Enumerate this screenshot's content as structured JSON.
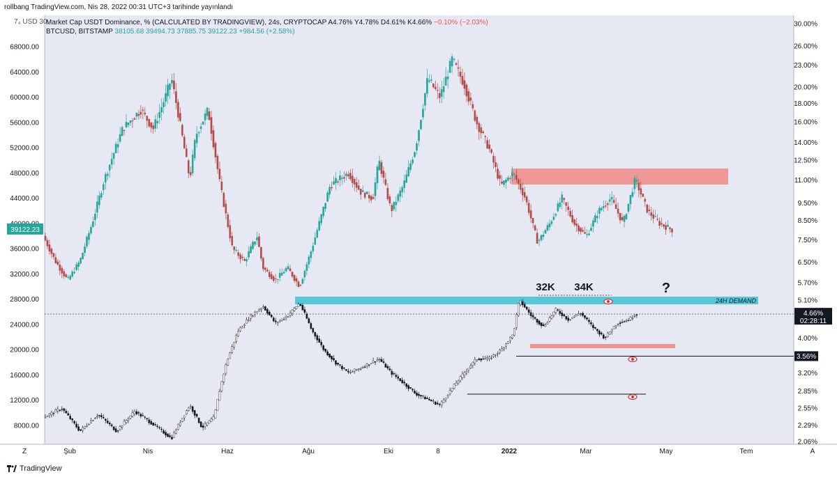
{
  "header": {
    "published": "rollbang TradingView.com, Nis 28, 2022 00:31 UTC+3 tarihinde yayınlandı",
    "corner_label": "7₄ USD 30"
  },
  "legend": {
    "series1_name": "Market Cap USDT Dominance, % (CALCULATED BY TRADINGVIEW), 24s, CRYPTOCAP",
    "series1_values": "A4.76%  Y4.78%  D4.61%  K4.66%",
    "series1_change": "−0.10% (−2.03%)",
    "series2_name": "BTCUSD, BITSTAMP",
    "series2_values": "38105.68  39494.73  37885.75  39122.23",
    "series2_change": "+984.56 (+2.58%)"
  },
  "footer": {
    "brand": "TradingView"
  },
  "colors": {
    "bull": "#26a69a",
    "bear": "#b34b46",
    "pane_bg": "#e6e8f4",
    "demand": "#56c8d8",
    "supply": "#ef8a86"
  },
  "chart_data": {
    "type": "candlestick",
    "left_axis": {
      "series": "BTCUSD",
      "ticks": [
        "68000.00",
        "64000.00",
        "60000.00",
        "56000.00",
        "52000.00",
        "48000.00",
        "44000.00",
        "40000.00",
        "36000.00",
        "32000.00",
        "28000.00",
        "24000.00",
        "20000.00",
        "16000.00",
        "12000.00",
        "8000.00"
      ],
      "tick_values": [
        68000,
        64000,
        60000,
        56000,
        52000,
        48000,
        44000,
        40000,
        36000,
        32000,
        28000,
        24000,
        20000,
        16000,
        12000,
        8000
      ],
      "last_price_label": "39122.23",
      "last_price": 39122.23
    },
    "right_axis": {
      "series": "USDT Dominance (log)",
      "ticks": [
        "30.00%",
        "26.00%",
        "23.00%",
        "20.00%",
        "18.00%",
        "16.00%",
        "14.00%",
        "12.50%",
        "11.00%",
        "9.50%",
        "8.50%",
        "7.50%",
        "6.50%",
        "5.70%",
        "5.10%",
        "4.00%",
        "3.20%",
        "2.85%",
        "2.55%",
        "2.29%",
        "2.06%"
      ],
      "tick_values": [
        30,
        26,
        23,
        20,
        18,
        16,
        14,
        12.5,
        11,
        9.5,
        8.5,
        7.5,
        6.5,
        5.7,
        5.1,
        4.0,
        3.2,
        2.85,
        2.55,
        2.29,
        2.06
      ],
      "current_label": "4.66%",
      "current_value": 4.66,
      "countdown": "02:28:11",
      "marked_level_label": "3.56%",
      "marked_level": 3.56
    },
    "x_ticks": [
      "Z",
      "Şub",
      "Nis",
      "Haz",
      "Ağu",
      "Eki",
      "8",
      "2022",
      "Mar",
      "May",
      "Tem",
      "A"
    ],
    "btc_path": [
      [
        0,
        38000
      ],
      [
        2,
        34000
      ],
      [
        4,
        31000
      ],
      [
        6,
        34000
      ],
      [
        8,
        40000
      ],
      [
        10,
        47000
      ],
      [
        13,
        55000
      ],
      [
        16,
        58000
      ],
      [
        18,
        55000
      ],
      [
        20,
        60000
      ],
      [
        21,
        63000
      ],
      [
        22,
        58000
      ],
      [
        24,
        47000
      ],
      [
        25,
        54000
      ],
      [
        27,
        58000
      ],
      [
        29,
        46000
      ],
      [
        31,
        36000
      ],
      [
        33,
        34000
      ],
      [
        35,
        38000
      ],
      [
        36,
        33000
      ],
      [
        38,
        31000
      ],
      [
        40,
        33000
      ],
      [
        42,
        30000
      ],
      [
        44,
        36000
      ],
      [
        47,
        46000
      ],
      [
        50,
        48000
      ],
      [
        52,
        45000
      ],
      [
        54,
        44000
      ],
      [
        55,
        50000
      ],
      [
        57,
        42000
      ],
      [
        59,
        46000
      ],
      [
        61,
        52000
      ],
      [
        63,
        63000
      ],
      [
        65,
        60000
      ],
      [
        67,
        66000
      ],
      [
        69,
        62000
      ],
      [
        71,
        56000
      ],
      [
        73,
        52000
      ],
      [
        75,
        46000
      ],
      [
        77,
        48000
      ],
      [
        79,
        44000
      ],
      [
        81,
        37000
      ],
      [
        83,
        40000
      ],
      [
        85,
        44000
      ],
      [
        87,
        40000
      ],
      [
        89,
        38000
      ],
      [
        91,
        42000
      ],
      [
        93,
        44000
      ],
      [
        95,
        40000
      ],
      [
        97,
        47000
      ],
      [
        99,
        42000
      ],
      [
        101,
        40000
      ],
      [
        103,
        39000
      ]
    ],
    "usdt_path": [
      [
        0,
        2.4
      ],
      [
        3,
        2.55
      ],
      [
        6,
        2.2
      ],
      [
        9,
        2.45
      ],
      [
        12,
        2.2
      ],
      [
        15,
        2.5
      ],
      [
        18,
        2.3
      ],
      [
        21,
        2.1
      ],
      [
        24,
        2.6
      ],
      [
        26,
        2.25
      ],
      [
        28,
        2.4
      ],
      [
        30,
        3.4
      ],
      [
        32,
        4.2
      ],
      [
        34,
        4.6
      ],
      [
        36,
        4.9
      ],
      [
        38,
        4.4
      ],
      [
        40,
        4.6
      ],
      [
        42,
        5.0
      ],
      [
        44,
        4.2
      ],
      [
        46,
        3.7
      ],
      [
        48,
        3.4
      ],
      [
        50,
        3.2
      ],
      [
        52,
        3.3
      ],
      [
        55,
        3.5
      ],
      [
        57,
        3.2
      ],
      [
        59,
        3.0
      ],
      [
        61,
        2.8
      ],
      [
        63,
        2.7
      ],
      [
        65,
        2.6
      ],
      [
        67,
        2.9
      ],
      [
        69,
        3.2
      ],
      [
        71,
        3.5
      ],
      [
        73,
        3.5
      ],
      [
        75,
        3.7
      ],
      [
        77,
        4.1
      ],
      [
        78,
        5.1
      ],
      [
        80,
        4.6
      ],
      [
        82,
        4.3
      ],
      [
        84,
        4.8
      ],
      [
        86,
        4.5
      ],
      [
        88,
        4.7
      ],
      [
        90,
        4.3
      ],
      [
        92,
        4.0
      ],
      [
        94,
        4.4
      ],
      [
        96,
        4.5
      ],
      [
        97,
        4.66
      ]
    ],
    "zones": [
      {
        "label": "24H DEMAND",
        "kind": "demand"
      },
      {
        "label": "",
        "kind": "supply"
      },
      {
        "label": "",
        "kind": "support"
      }
    ],
    "annotations": [
      "32K",
      "34K",
      "?"
    ]
  }
}
